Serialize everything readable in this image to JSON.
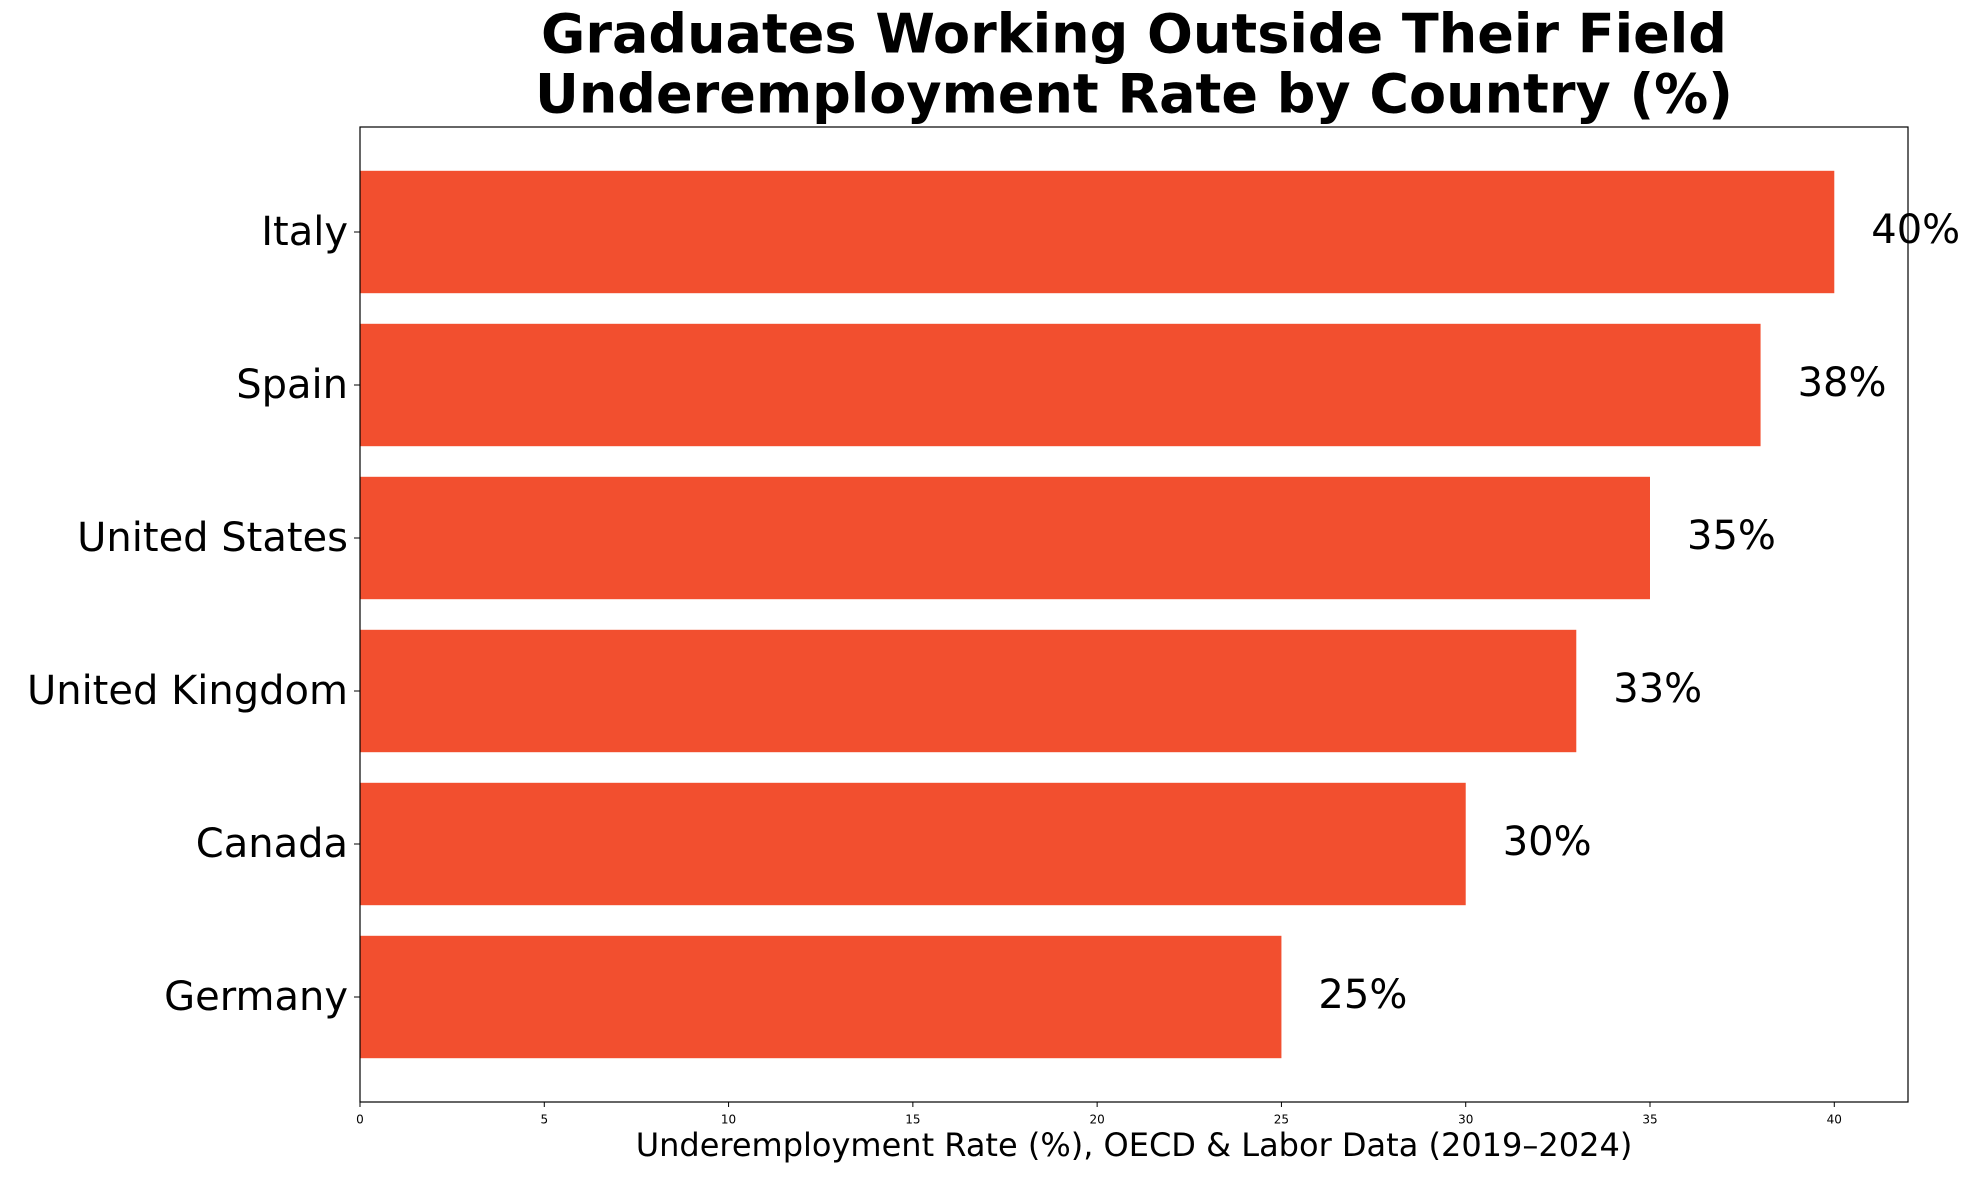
{
  "chart_data": {
    "type": "barh",
    "title": [
      "Graduates Working Outside Their Field",
      "Underemployment Rate by Country (%)"
    ],
    "x_label": "Underemployment Rate (%), OECD & Labor Data (2019–2024)",
    "categories": [
      "Italy",
      "Spain",
      "United States",
      "United Kingdom",
      "Canada",
      "Germany"
    ],
    "values": [
      40,
      38,
      35,
      33,
      30,
      25
    ],
    "value_labels": [
      "40%",
      "38%",
      "35%",
      "33%",
      "30%",
      "25%"
    ],
    "color": "#f24f2f",
    "xlim": [
      0,
      42
    ],
    "xticks": [
      0,
      5,
      10,
      15,
      20,
      25,
      30,
      35,
      40
    ],
    "grid": false
  }
}
